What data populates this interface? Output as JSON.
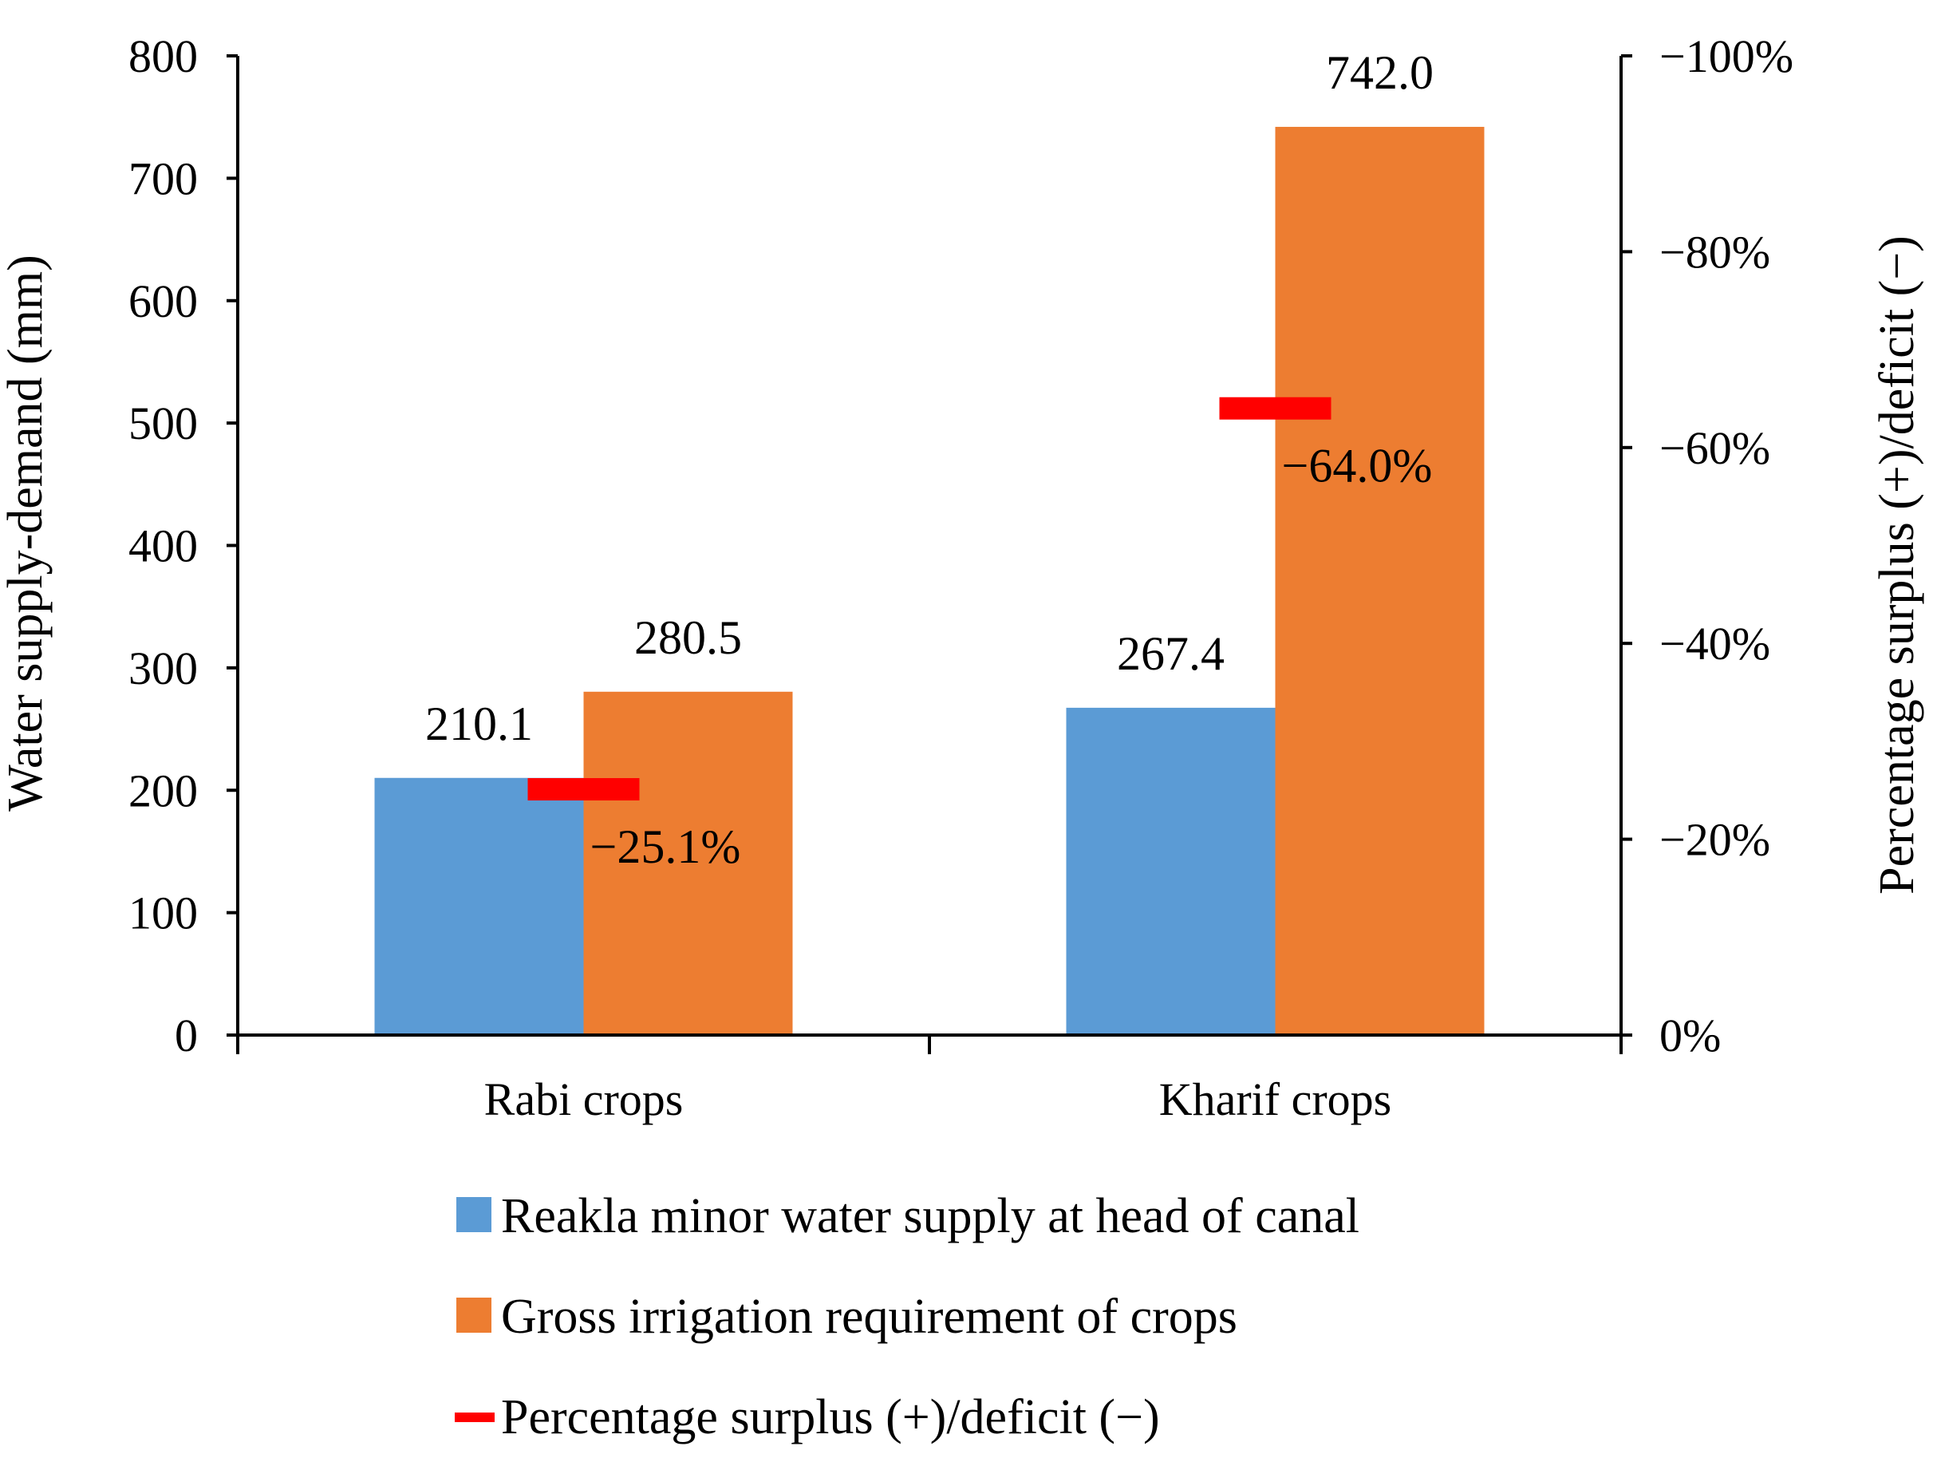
{
  "chart_data": {
    "type": "bar",
    "categories": [
      "Rabi crops",
      "Kharif crops"
    ],
    "series": [
      {
        "name": "Reakla minor water supply at head of canal",
        "values": [
          210.1,
          267.4
        ],
        "value_labels": [
          "210.1",
          "267.4"
        ],
        "color": "#5b9bd5",
        "axis": "left"
      },
      {
        "name": "Gross irrigation requirement of crops",
        "values": [
          280.5,
          742.0
        ],
        "value_labels": [
          "280.5",
          "742.0"
        ],
        "color": "#ed7d31",
        "axis": "left"
      },
      {
        "name": "Percentage surplus (+)/deficit (−)",
        "values": [
          -25.1,
          -64.0
        ],
        "value_labels": [
          "−25.1%",
          "−64.0%"
        ],
        "color": "#ff0000",
        "axis": "right",
        "marker": "dash"
      }
    ],
    "ylabel": "Water supply-demand (mm)",
    "y2label": "Percentage surplus (+)/deficit (−)",
    "xlabel": "",
    "ylim": [
      0,
      800
    ],
    "y_ticks": [
      0,
      100,
      200,
      300,
      400,
      500,
      600,
      700,
      800
    ],
    "y_tick_labels": [
      "0",
      "100",
      "200",
      "300",
      "400",
      "500",
      "600",
      "700",
      "800"
    ],
    "y2lim": [
      0,
      -100
    ],
    "y2_ticks": [
      0,
      -20,
      -40,
      -60,
      -80,
      -100
    ],
    "y2_tick_labels": [
      "0%",
      "−20%",
      "−40%",
      "−60%",
      "−80%",
      "−100%"
    ],
    "grid": false,
    "legend_position": "bottom"
  },
  "colors": {
    "axis": "#000000",
    "background": "#ffffff"
  }
}
